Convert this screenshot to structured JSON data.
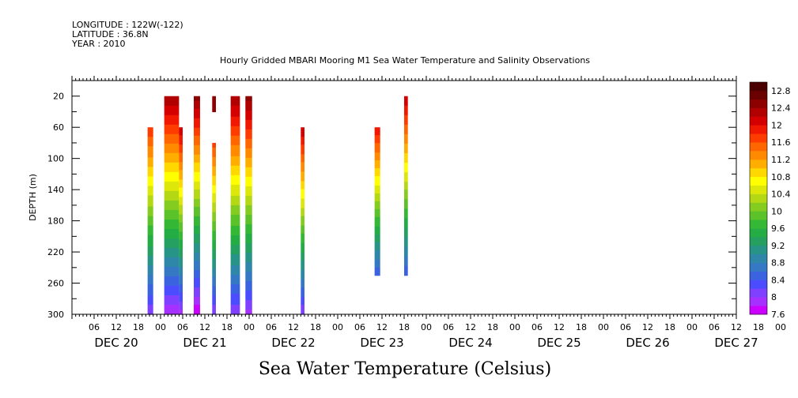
{
  "header": {
    "longitude": "LONGITUDE : 122W(-122)",
    "latitude": "LATITUDE : 36.8N",
    "year": "YEAR : 2010"
  },
  "chart_data": {
    "type": "heatmap",
    "title": "Hourly Gridded MBARI Mooring M1 Sea Water Temperature and Salinity Observations",
    "xlabel": "Sea Water Temperature (Celsius)",
    "ylabel": "DEPTH (m)",
    "x_unit": "hours since 2010-12-20 00:00",
    "xlim": [
      0,
      180
    ],
    "ylim": [
      300,
      0
    ],
    "y_ticks": [
      20,
      60,
      100,
      140,
      180,
      220,
      260,
      300
    ],
    "x_hour_labels": [
      "06",
      "12",
      "18",
      "00",
      "06",
      "12",
      "18",
      "00",
      "06",
      "12",
      "18",
      "00",
      "06",
      "12",
      "18",
      "00",
      "06",
      "12",
      "18",
      "00",
      "06",
      "12",
      "18",
      "00",
      "06",
      "12",
      "18",
      "00",
      "06",
      "12",
      "18",
      "00"
    ],
    "x_day_labels": [
      "DEC 20",
      "DEC 21",
      "DEC 22",
      "DEC 23",
      "DEC 24",
      "DEC 25",
      "DEC 26",
      "DEC 27"
    ],
    "colorbar": {
      "min": 7.6,
      "max": 13.0,
      "step": 0.2,
      "labels": [
        "12.8",
        "12.4",
        "12",
        "11.6",
        "11.2",
        "10.8",
        "10.4",
        "10",
        "9.6",
        "9.2",
        "8.8",
        "8.4",
        "8",
        "7.6"
      ],
      "colors": [
        "#cc00ff",
        "#a630ff",
        "#7f40ff",
        "#4c4cff",
        "#3b63e0",
        "#3578c4",
        "#2e87a8",
        "#279487",
        "#25a060",
        "#25ad45",
        "#35b835",
        "#5cc22a",
        "#85cc20",
        "#b4d814",
        "#dde80a",
        "#ffff00",
        "#ffd800",
        "#ffae00",
        "#ff8a00",
        "#ff6600",
        "#ff3c00",
        "#f01800",
        "#d40000",
        "#b00000",
        "#8c0000",
        "#6b0000",
        "#4a0000"
      ]
    },
    "columns": [
      {
        "x0": 20.5,
        "x1": 22.0,
        "d0": 60,
        "d1": 300,
        "t0": 11.8,
        "t1": 8.0
      },
      {
        "x0": 25.0,
        "x1": 29.0,
        "d0": 20,
        "d1": 300,
        "t0": 12.4,
        "t1": 7.8
      },
      {
        "x0": 29.0,
        "x1": 30.0,
        "d0": 60,
        "d1": 300,
        "t0": 12.2,
        "t1": 7.9
      },
      {
        "x0": 33.0,
        "x1": 34.7,
        "d0": 20,
        "d1": 300,
        "t0": 12.5,
        "t1": 7.6
      },
      {
        "x0": 38.0,
        "x1": 39.0,
        "d0": 20,
        "d1": 40,
        "t0": 12.5,
        "t1": 12.4
      },
      {
        "x0": 38.0,
        "x1": 39.0,
        "d0": 80,
        "d1": 300,
        "t0": 11.7,
        "t1": 8.0
      },
      {
        "x0": 43.0,
        "x1": 45.5,
        "d0": 20,
        "d1": 300,
        "t0": 12.4,
        "t1": 8.0
      },
      {
        "x0": 47.0,
        "x1": 48.8,
        "d0": 20,
        "d1": 300,
        "t0": 12.5,
        "t1": 7.9
      },
      {
        "x0": 62.0,
        "x1": 63.0,
        "d0": 60,
        "d1": 300,
        "t0": 12.2,
        "t1": 8.0
      },
      {
        "x0": 82.0,
        "x1": 83.5,
        "d0": 60,
        "d1": 250,
        "t0": 12.0,
        "t1": 8.4
      },
      {
        "x0": 90.0,
        "x1": 91.0,
        "d0": 20,
        "d1": 250,
        "t0": 12.2,
        "t1": 8.4
      }
    ]
  }
}
